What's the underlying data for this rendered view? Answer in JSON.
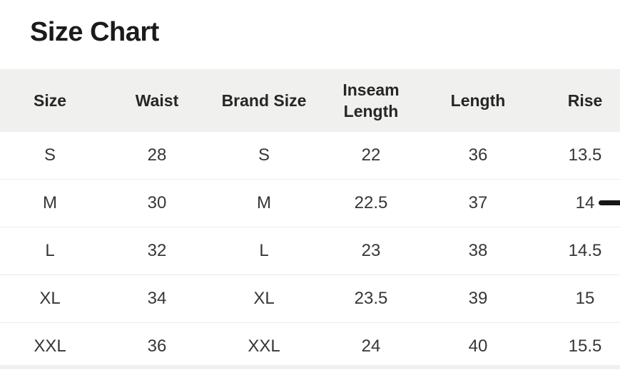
{
  "page": {
    "title": "Size Chart"
  },
  "table": {
    "headers": [
      "Size",
      "Waist",
      "Brand Size",
      "Inseam Length",
      "Length",
      "Rise"
    ],
    "rows": [
      [
        "S",
        "28",
        "S",
        "22",
        "36",
        "13.5"
      ],
      [
        "M",
        "30",
        "M",
        "22.5",
        "37",
        "14"
      ],
      [
        "L",
        "32",
        "L",
        "23",
        "38",
        "14.5"
      ],
      [
        "XL",
        "34",
        "XL",
        "23.5",
        "39",
        "15"
      ],
      [
        "XXL",
        "36",
        "XXL",
        "24",
        "40",
        "15.5"
      ]
    ]
  },
  "colors": {
    "title_text": "#1b1b1b",
    "header_background": "#f0f0ef",
    "header_text": "#262626",
    "body_text": "#363636",
    "row_divider": "#ececea",
    "scrollbar_thumb": "#161616",
    "next_row_peek": "#f0f0ef",
    "page_background": "#ffffff"
  }
}
